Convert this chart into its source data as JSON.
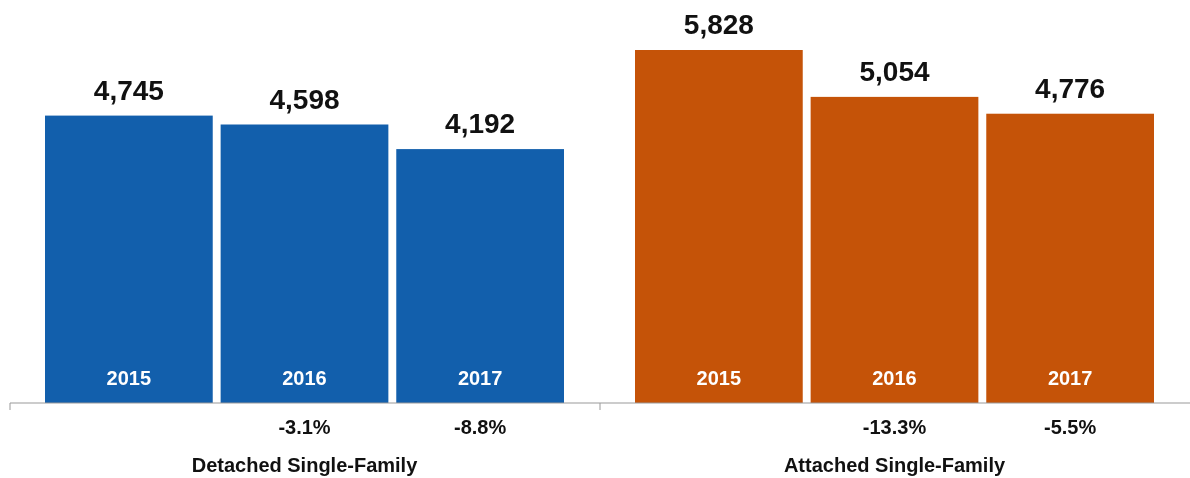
{
  "chart_data": [
    {
      "type": "bar",
      "xlabel": "Detached Single-Family",
      "categories": [
        "2015",
        "2016",
        "2017"
      ],
      "values": [
        4745,
        4598,
        4192
      ],
      "value_labels": [
        "4,745",
        "4,598",
        "4,192"
      ],
      "color": "#125fac",
      "annotations": [
        "-3.1%",
        "-8.8%"
      ]
    },
    {
      "type": "bar",
      "xlabel": "Attached Single-Family",
      "categories": [
        "2015",
        "2016",
        "2017"
      ],
      "values": [
        5828,
        5054,
        4776
      ],
      "value_labels": [
        "5,828",
        "5,054",
        "4,776"
      ],
      "color": "#c55308",
      "annotations": [
        "-13.3%",
        "-5.5%"
      ]
    }
  ]
}
